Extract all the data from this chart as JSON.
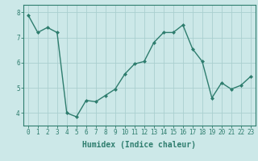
{
  "x": [
    0,
    1,
    2,
    3,
    4,
    5,
    6,
    7,
    8,
    9,
    10,
    11,
    12,
    13,
    14,
    15,
    16,
    17,
    18,
    19,
    20,
    21,
    22,
    23
  ],
  "y": [
    7.9,
    7.2,
    7.4,
    7.2,
    4.0,
    3.85,
    4.5,
    4.45,
    4.7,
    4.95,
    5.55,
    5.95,
    6.05,
    6.8,
    7.2,
    7.2,
    7.5,
    6.55,
    6.05,
    4.6,
    5.2,
    4.95,
    5.1,
    5.45
  ],
  "line_color": "#2e7d6e",
  "marker": "D",
  "marker_size": 2.0,
  "bg_color": "#cce8e8",
  "grid_color": "#aacfcf",
  "xlabel": "Humidex (Indice chaleur)",
  "xlim": [
    -0.5,
    23.5
  ],
  "ylim": [
    3.5,
    8.3
  ],
  "yticks": [
    4,
    5,
    6,
    7,
    8
  ],
  "xticks": [
    0,
    1,
    2,
    3,
    4,
    5,
    6,
    7,
    8,
    9,
    10,
    11,
    12,
    13,
    14,
    15,
    16,
    17,
    18,
    19,
    20,
    21,
    22,
    23
  ],
  "tick_fontsize": 5.5,
  "xlabel_fontsize": 7.0,
  "line_width": 1.0
}
